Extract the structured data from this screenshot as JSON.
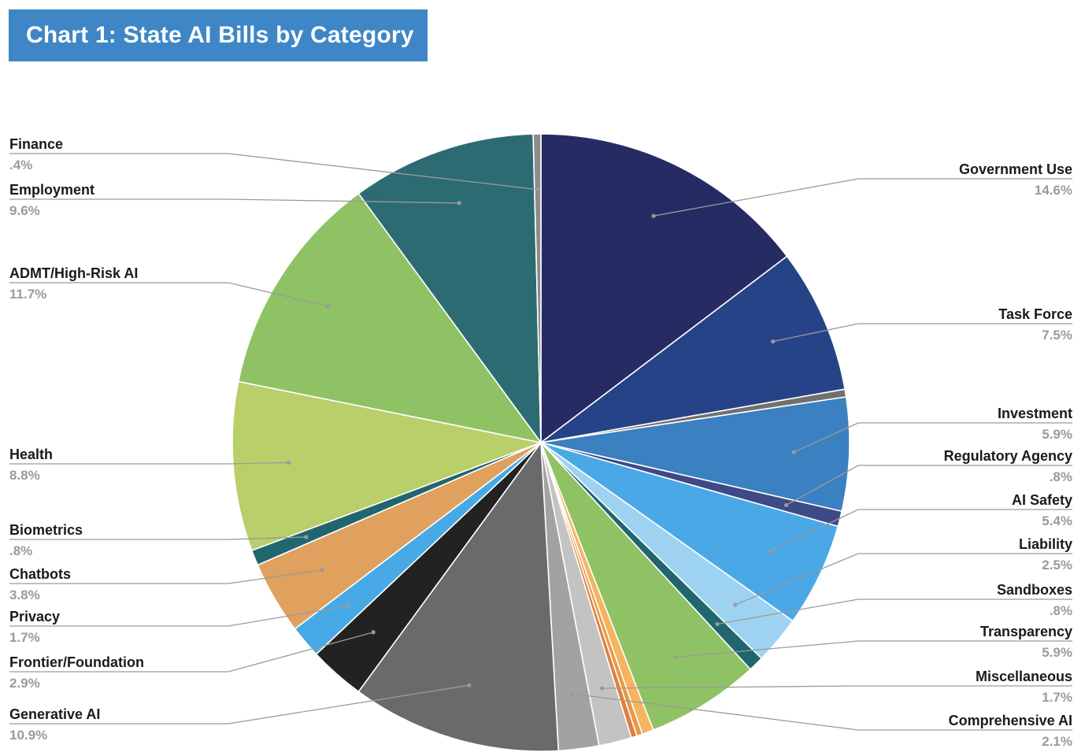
{
  "chart_title": "Chart 1: State AI Bills by Category",
  "chart_data": {
    "type": "pie",
    "title": "Chart 1: State AI Bills by Category",
    "start_angle_deg": 0,
    "direction": "clockwise",
    "slices": [
      {
        "name": "Government Use",
        "label": "14.6%",
        "value": 14.6,
        "color": "#272b63"
      },
      {
        "name": "Task Force",
        "label": "7.5%",
        "value": 7.5,
        "color": "#274387"
      },
      {
        "name": "",
        "label": "",
        "value": 0.4,
        "color": "#707070"
      },
      {
        "name": "Investment",
        "label": "5.9%",
        "value": 5.9,
        "color": "#3b80c0"
      },
      {
        "name": "Regulatory Agency",
        "label": ".8%",
        "value": 0.8,
        "color": "#3d4a86"
      },
      {
        "name": "AI Safety",
        "label": "5.4%",
        "value": 5.4,
        "color": "#4aa8e6"
      },
      {
        "name": "Liability",
        "label": "2.5%",
        "value": 2.5,
        "color": "#9dd3f1"
      },
      {
        "name": "Sandboxes",
        "label": ".8%",
        "value": 0.8,
        "color": "#21666f"
      },
      {
        "name": "Transparency",
        "label": "5.9%",
        "value": 5.9,
        "color": "#8fc264"
      },
      {
        "name": "",
        "label": "",
        "value": 0.6,
        "color": "#f5b460"
      },
      {
        "name": "",
        "label": "",
        "value": 0.3,
        "color": "#e59a48"
      },
      {
        "name": "",
        "label": "",
        "value": 0.3,
        "color": "#e07f3c"
      },
      {
        "name": "Miscellaneous",
        "label": "1.7%",
        "value": 1.7,
        "color": "#c3c3c3"
      },
      {
        "name": "Comprehensive AI",
        "label": "2.1%",
        "value": 2.1,
        "color": "#a2a2a2"
      },
      {
        "name": "Generative AI",
        "label": "10.9%",
        "value": 10.9,
        "color": "#6a6a6a"
      },
      {
        "name": "Frontier/Foundation",
        "label": "2.9%",
        "value": 2.9,
        "color": "#222222"
      },
      {
        "name": "Privacy",
        "label": "1.7%",
        "value": 1.7,
        "color": "#48a9e7"
      },
      {
        "name": "Chatbots",
        "label": "3.8%",
        "value": 3.8,
        "color": "#dfa15d"
      },
      {
        "name": "Biometrics",
        "label": ".8%",
        "value": 0.8,
        "color": "#21666f"
      },
      {
        "name": "Health",
        "label": "8.8%",
        "value": 8.8,
        "color": "#b8cf6a"
      },
      {
        "name": "ADMT/High-Risk AI",
        "label": "11.7%",
        "value": 11.7,
        "color": "#8fc264"
      },
      {
        "name": "Employment",
        "label": "9.6%",
        "value": 9.6,
        "color": "#2d6b73"
      },
      {
        "name": "Finance",
        "label": ".4%",
        "value": 0.4,
        "color": "#8c8c8c"
      }
    ]
  }
}
